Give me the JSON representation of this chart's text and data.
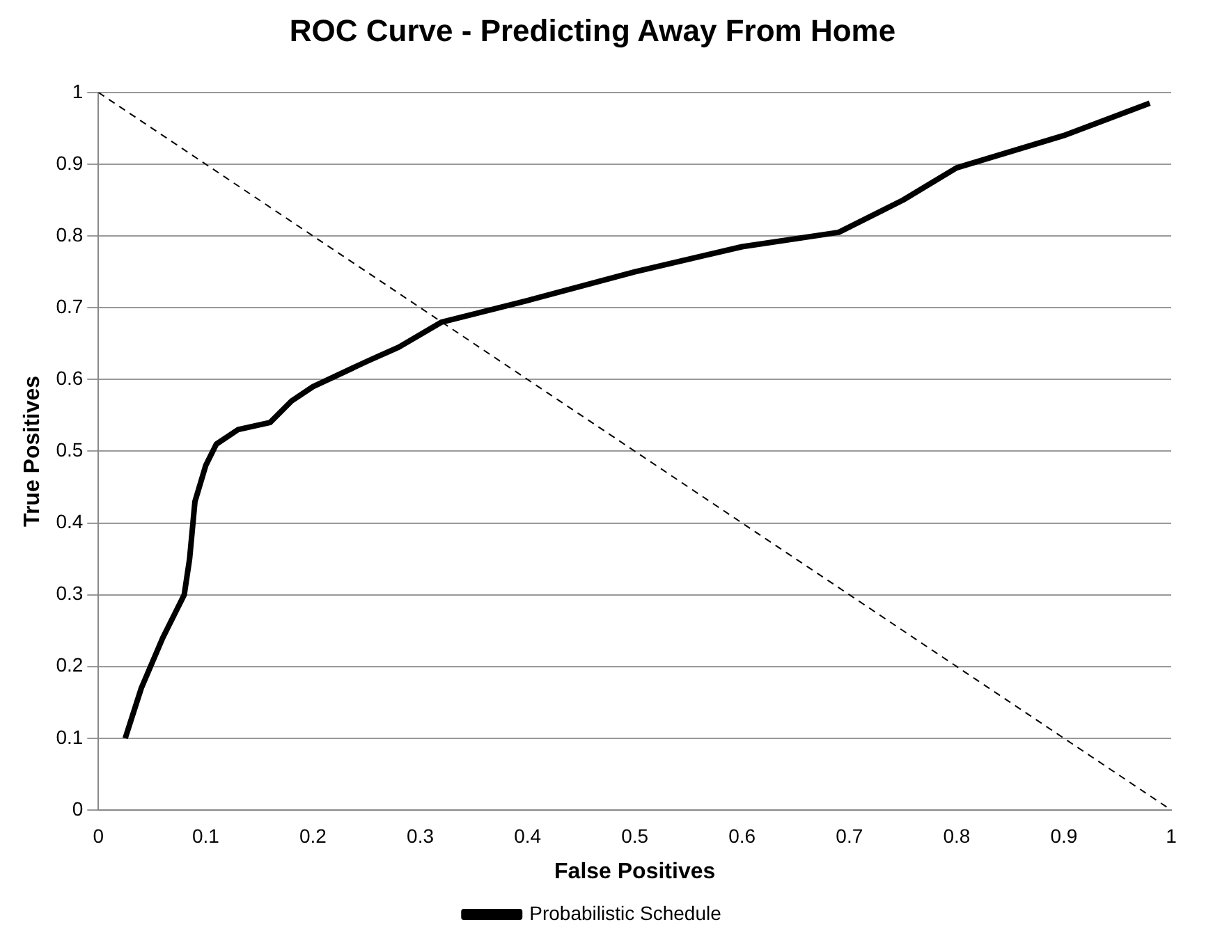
{
  "chart_data": {
    "type": "line",
    "title": "ROC Curve - Predicting Away From Home",
    "xlabel": "False Positives",
    "ylabel": "True Positives",
    "xlim": [
      0,
      1
    ],
    "ylim": [
      0,
      1
    ],
    "xticks": [
      0,
      0.1,
      0.2,
      0.3,
      0.4,
      0.5,
      0.6,
      0.7,
      0.8,
      0.9,
      1
    ],
    "yticks": [
      0,
      0.1,
      0.2,
      0.3,
      0.4,
      0.5,
      0.6,
      0.7,
      0.8,
      0.9,
      1
    ],
    "grid": "y",
    "legend": "bottom",
    "marker": "none",
    "series": [
      {
        "name": "Probabilistic Schedule",
        "color": "#000000",
        "line_style": "solid",
        "x": [
          0.025,
          0.04,
          0.06,
          0.08,
          0.085,
          0.09,
          0.1,
          0.11,
          0.13,
          0.16,
          0.18,
          0.2,
          0.25,
          0.28,
          0.32,
          0.4,
          0.5,
          0.6,
          0.69,
          0.75,
          0.8,
          0.9,
          0.98
        ],
        "values": [
          0.1,
          0.17,
          0.24,
          0.3,
          0.35,
          0.43,
          0.48,
          0.51,
          0.53,
          0.54,
          0.57,
          0.59,
          0.625,
          0.645,
          0.68,
          0.71,
          0.75,
          0.785,
          0.805,
          0.85,
          0.895,
          0.94,
          0.985
        ]
      },
      {
        "color": "#000000",
        "line_style": "dashed",
        "x": [
          0,
          1
        ],
        "values": [
          1,
          0
        ]
      }
    ]
  }
}
